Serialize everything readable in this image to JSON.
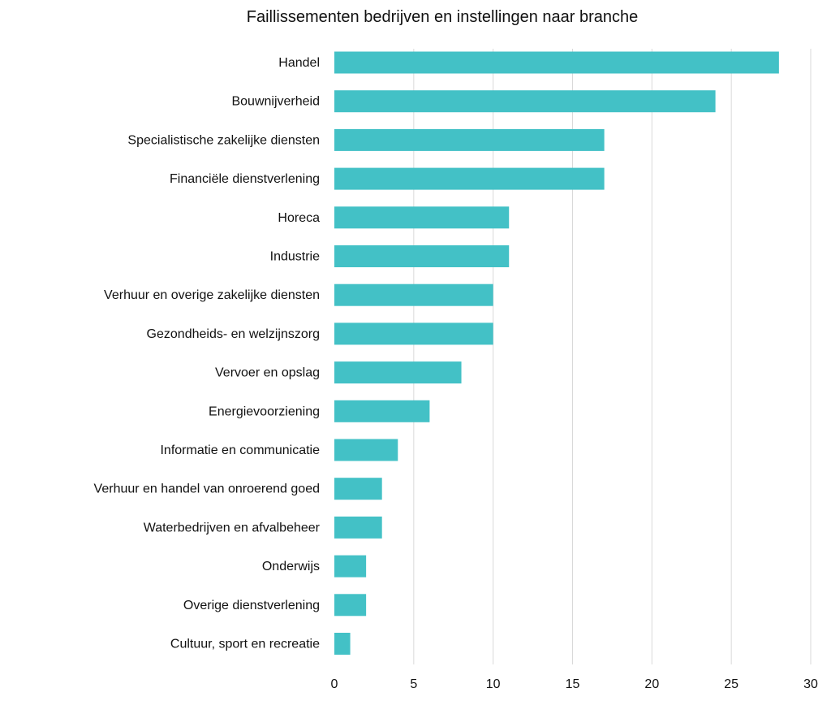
{
  "colors": {
    "bar": "#43c1c6",
    "grid": "#d9d9d9",
    "text": "#111111"
  },
  "chart_data": {
    "type": "bar",
    "orientation": "horizontal",
    "title": "Faillissementen bedrijven en instellingen naar branche",
    "xlabel": "",
    "ylabel": "",
    "xlim": [
      0,
      30
    ],
    "x_ticks": [
      0,
      5,
      10,
      15,
      20,
      25,
      30
    ],
    "grid": "vertical",
    "legend": "none",
    "categories": [
      "Handel",
      "Bouwnijverheid",
      "Specialistische zakelijke diensten",
      "Financiële dienstverlening",
      "Horeca",
      "Industrie",
      "Verhuur en overige zakelijke diensten",
      "Gezondheids- en welzijnszorg",
      "Vervoer en opslag",
      "Energievoorziening",
      "Informatie en communicatie",
      "Verhuur en handel van onroerend goed",
      "Waterbedrijven en afvalbeheer",
      "Onderwijs",
      "Overige dienstverlening",
      "Cultuur, sport en recreatie"
    ],
    "values": [
      28,
      24,
      17,
      17,
      11,
      11,
      10,
      10,
      8,
      6,
      4,
      3,
      3,
      2,
      2,
      1
    ]
  }
}
